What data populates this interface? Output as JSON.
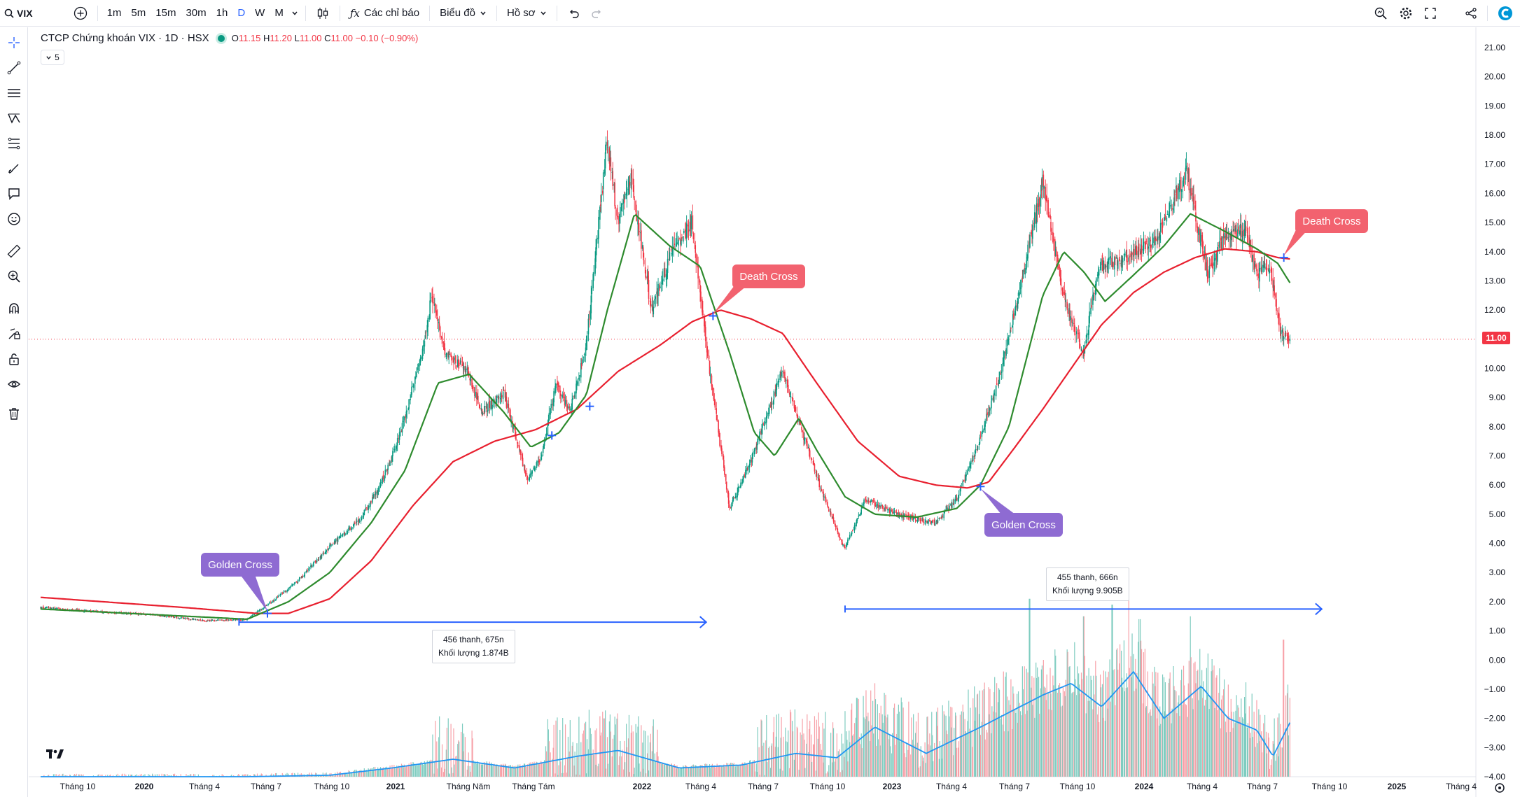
{
  "top_bar": {
    "symbol": "VIX",
    "timeframes": [
      {
        "label": "1m",
        "active": false
      },
      {
        "label": "5m",
        "active": false
      },
      {
        "label": "15m",
        "active": false
      },
      {
        "label": "30m",
        "active": false
      },
      {
        "label": "1h",
        "active": false
      },
      {
        "label": "D",
        "active": true
      },
      {
        "label": "W",
        "active": false
      },
      {
        "label": "M",
        "active": false
      }
    ],
    "indicators_label": "Các chỉ báo",
    "chart_type_label": "Biểu đồ",
    "profile_label": "Hồ sơ"
  },
  "legend": {
    "title": "CTCP Chứng khoán VIX · 1D · HSX",
    "open_label": "O",
    "open": "11.15",
    "high_label": "H",
    "high": "11.20",
    "low_label": "L",
    "low": "11.00",
    "close_label": "C",
    "close": "11.00",
    "change": "−0.10 (−0.90%)",
    "indicator_count": "5"
  },
  "price_tag": "11.00",
  "annotations": {
    "golden_cross_1": "Golden Cross",
    "golden_cross_2": "Golden Cross",
    "death_cross_1": "Death Cross",
    "death_cross_2": "Death Cross"
  },
  "measure_1": {
    "line1": "456 thanh, 675n",
    "line2": "Khối lượng 1.874B"
  },
  "measure_2": {
    "line1": "455 thanh, 666n",
    "line2": "Khối lượng 9.905B"
  },
  "colors": {
    "up": "#089981",
    "down": "#f23645",
    "ma_fast": "#2e8b2e",
    "ma_slow": "#e8202f",
    "volume_ma": "#2196f3",
    "annot_purple": "#8e6bd2",
    "annot_pink": "#f2626f",
    "measure": "#2962ff"
  },
  "icons": {
    "left_toolbar": [
      "crosshair-icon",
      "trend-line-icon",
      "horizontal-lines-icon",
      "pattern-icon",
      "fib-icon",
      "brush-icon",
      "comment-icon",
      "emoji-icon",
      "ruler-icon",
      "zoom-in-icon",
      "magnet-icon",
      "lock-drawing-icon",
      "unlock-icon",
      "eye-icon",
      "trash-icon"
    ],
    "top_right": [
      "search-zoom-icon",
      "gear-icon",
      "fullscreen-icon",
      "share-icon",
      "app-logo-icon"
    ]
  },
  "chart_data": {
    "type": "candlestick",
    "title": "CTCP Chứng khoán VIX · 1D · HSX",
    "y_axis": {
      "min": -4.0,
      "max": 21.0,
      "step": 1.0,
      "ticks": [
        "21.00",
        "20.00",
        "19.00",
        "18.00",
        "17.00",
        "16.00",
        "15.00",
        "14.00",
        "13.00",
        "12.00",
        "11.00",
        "10.00",
        "9.00",
        "8.00",
        "7.00",
        "6.00",
        "5.00",
        "4.00",
        "3.00",
        "2.00",
        "1.00",
        "0.00",
        "−1.00",
        "−2.00",
        "−3.00",
        "−4.00"
      ]
    },
    "x_axis": {
      "ticks": [
        {
          "label": "Tháng 10",
          "bold": false
        },
        {
          "label": "2020",
          "bold": true
        },
        {
          "label": "Tháng 4",
          "bold": false
        },
        {
          "label": "Tháng 7",
          "bold": false
        },
        {
          "label": "Tháng 10",
          "bold": false
        },
        {
          "label": "2021",
          "bold": true
        },
        {
          "label": "Tháng Năm",
          "bold": false
        },
        {
          "label": "Tháng Tám",
          "bold": false
        },
        {
          "label": "2022",
          "bold": true
        },
        {
          "label": "Tháng 4",
          "bold": false
        },
        {
          "label": "Tháng 7",
          "bold": false
        },
        {
          "label": "Tháng 10",
          "bold": false
        },
        {
          "label": "2023",
          "bold": true
        },
        {
          "label": "Tháng 4",
          "bold": false
        },
        {
          "label": "Tháng 7",
          "bold": false
        },
        {
          "label": "Tháng 10",
          "bold": false
        },
        {
          "label": "2024",
          "bold": true
        },
        {
          "label": "Tháng 4",
          "bold": false
        },
        {
          "label": "Tháng 7",
          "bold": false
        },
        {
          "label": "Tháng 10",
          "bold": false
        },
        {
          "label": "2025",
          "bold": true
        },
        {
          "label": "Tháng 4",
          "bold": false
        }
      ]
    },
    "price_keypoints": [
      [
        "2019-08-01",
        1.8
      ],
      [
        "2019-11-01",
        1.65
      ],
      [
        "2020-01-15",
        1.55
      ],
      [
        "2020-04-01",
        1.35
      ],
      [
        "2020-06-01",
        1.4
      ],
      [
        "2020-07-01",
        1.9
      ],
      [
        "2020-08-15",
        2.7
      ],
      [
        "2020-10-01",
        3.9
      ],
      [
        "2020-11-15",
        4.8
      ],
      [
        "2020-12-15",
        6.0
      ],
      [
        "2021-01-10",
        7.5
      ],
      [
        "2021-02-15",
        10.5
      ],
      [
        "2021-03-01",
        12.5
      ],
      [
        "2021-03-20",
        10.5
      ],
      [
        "2021-04-20",
        10.0
      ],
      [
        "2021-05-15",
        8.5
      ],
      [
        "2021-06-15",
        9.2
      ],
      [
        "2021-07-20",
        6.2
      ],
      [
        "2021-08-10",
        7.0
      ],
      [
        "2021-09-01",
        9.5
      ],
      [
        "2021-09-20",
        8.5
      ],
      [
        "2021-10-15",
        10.8
      ],
      [
        "2021-11-15",
        17.8
      ],
      [
        "2021-12-01",
        15.0
      ],
      [
        "2021-12-20",
        16.5
      ],
      [
        "2022-01-20",
        12.0
      ],
      [
        "2022-02-15",
        13.8
      ],
      [
        "2022-03-20",
        15.0
      ],
      [
        "2022-04-15",
        10.0
      ],
      [
        "2022-05-15",
        5.2
      ],
      [
        "2022-06-15",
        6.8
      ],
      [
        "2022-07-15",
        8.8
      ],
      [
        "2022-08-01",
        9.9
      ],
      [
        "2022-08-20",
        8.5
      ],
      [
        "2022-10-01",
        5.6
      ],
      [
        "2022-11-01",
        3.8
      ],
      [
        "2022-12-01",
        5.5
      ],
      [
        "2023-01-15",
        5.0
      ],
      [
        "2023-03-15",
        4.7
      ],
      [
        "2023-04-15",
        5.5
      ],
      [
        "2023-05-15",
        7.3
      ],
      [
        "2023-06-15",
        9.5
      ],
      [
        "2023-07-15",
        12.5
      ],
      [
        "2023-08-20",
        16.3
      ],
      [
        "2023-09-20",
        12.5
      ],
      [
        "2023-10-20",
        10.5
      ],
      [
        "2023-11-10",
        13.5
      ],
      [
        "2023-12-15",
        13.8
      ],
      [
        "2024-02-01",
        14.3
      ],
      [
        "2024-03-20",
        16.8
      ],
      [
        "2024-04-20",
        13.2
      ],
      [
        "2024-05-15",
        14.5
      ],
      [
        "2024-06-15",
        14.8
      ],
      [
        "2024-07-01",
        13.2
      ],
      [
        "2024-07-20",
        13.6
      ],
      [
        "2024-08-05",
        11.2
      ],
      [
        "2024-08-20",
        11.0
      ]
    ],
    "ma_fast_keypoints": [
      [
        "2019-08-01",
        1.75
      ],
      [
        "2020-06-01",
        1.4
      ],
      [
        "2020-08-01",
        2.0
      ],
      [
        "2020-10-01",
        3.0
      ],
      [
        "2020-12-01",
        4.7
      ],
      [
        "2021-01-20",
        6.5
      ],
      [
        "2021-03-10",
        9.5
      ],
      [
        "2021-04-25",
        9.8
      ],
      [
        "2021-06-15",
        8.5
      ],
      [
        "2021-07-25",
        7.3
      ],
      [
        "2021-09-05",
        7.8
      ],
      [
        "2021-10-15",
        9.1
      ],
      [
        "2021-11-15",
        12.0
      ],
      [
        "2021-12-25",
        15.3
      ],
      [
        "2022-02-15",
        14.2
      ],
      [
        "2022-04-01",
        13.5
      ],
      [
        "2022-05-15",
        10.5
      ],
      [
        "2022-06-20",
        7.8
      ],
      [
        "2022-07-20",
        7.0
      ],
      [
        "2022-08-25",
        8.3
      ],
      [
        "2022-09-20",
        7.2
      ],
      [
        "2022-11-01",
        5.6
      ],
      [
        "2022-12-15",
        5.0
      ],
      [
        "2023-02-15",
        4.9
      ],
      [
        "2023-04-15",
        5.2
      ],
      [
        "2023-05-20",
        6.0
      ],
      [
        "2023-07-01",
        8.0
      ],
      [
        "2023-08-20",
        12.5
      ],
      [
        "2023-09-20",
        14.0
      ],
      [
        "2023-10-20",
        13.3
      ],
      [
        "2023-11-20",
        12.3
      ],
      [
        "2024-01-01",
        13.2
      ],
      [
        "2024-02-15",
        14.2
      ],
      [
        "2024-03-25",
        15.3
      ],
      [
        "2024-05-15",
        14.7
      ],
      [
        "2024-07-01",
        14.1
      ],
      [
        "2024-08-01",
        13.6
      ],
      [
        "2024-08-20",
        12.9
      ]
    ],
    "ma_slow_keypoints": [
      [
        "2019-08-01",
        2.15
      ],
      [
        "2020-03-01",
        1.8
      ],
      [
        "2020-06-15",
        1.6
      ],
      [
        "2020-08-01",
        1.6
      ],
      [
        "2020-10-01",
        2.1
      ],
      [
        "2020-12-01",
        3.4
      ],
      [
        "2021-02-01",
        5.3
      ],
      [
        "2021-04-01",
        6.8
      ],
      [
        "2021-06-01",
        7.5
      ],
      [
        "2021-08-01",
        7.9
      ],
      [
        "2021-10-01",
        8.6
      ],
      [
        "2021-12-01",
        9.9
      ],
      [
        "2022-02-01",
        10.8
      ],
      [
        "2022-03-20",
        11.6
      ],
      [
        "2022-05-01",
        12.0
      ],
      [
        "2022-06-15",
        11.7
      ],
      [
        "2022-08-01",
        11.2
      ],
      [
        "2022-09-20",
        9.5
      ],
      [
        "2022-11-20",
        7.5
      ],
      [
        "2023-01-20",
        6.3
      ],
      [
        "2023-03-15",
        6.0
      ],
      [
        "2023-05-01",
        5.9
      ],
      [
        "2023-06-01",
        6.1
      ],
      [
        "2023-07-10",
        7.3
      ],
      [
        "2023-08-20",
        8.6
      ],
      [
        "2023-10-01",
        10.0
      ],
      [
        "2023-11-15",
        11.5
      ],
      [
        "2024-01-01",
        12.6
      ],
      [
        "2024-02-15",
        13.3
      ],
      [
        "2024-04-01",
        13.8
      ],
      [
        "2024-05-15",
        14.1
      ],
      [
        "2024-07-01",
        14.0
      ],
      [
        "2024-08-01",
        13.8
      ],
      [
        "2024-08-20",
        13.75
      ]
    ],
    "volume_ma_keypoints": [
      [
        "2019-08-01",
        -4.0
      ],
      [
        "2020-06-01",
        -4.0
      ],
      [
        "2020-10-01",
        -3.95
      ],
      [
        "2021-01-01",
        -3.7
      ],
      [
        "2021-04-01",
        -3.4
      ],
      [
        "2021-07-01",
        -3.7
      ],
      [
        "2021-10-01",
        -3.3
      ],
      [
        "2021-12-01",
        -3.1
      ],
      [
        "2022-03-01",
        -3.7
      ],
      [
        "2022-06-01",
        -3.6
      ],
      [
        "2022-08-20",
        -3.2
      ],
      [
        "2022-10-20",
        -3.35
      ],
      [
        "2022-12-15",
        -2.3
      ],
      [
        "2023-03-01",
        -3.2
      ],
      [
        "2023-05-20",
        -2.3
      ],
      [
        "2023-08-20",
        -1.2
      ],
      [
        "2023-10-01",
        -0.8
      ],
      [
        "2023-11-15",
        -1.6
      ],
      [
        "2024-01-01",
        -0.4
      ],
      [
        "2024-02-15",
        -2.0
      ],
      [
        "2024-04-10",
        -0.9
      ],
      [
        "2024-05-20",
        -2.0
      ],
      [
        "2024-07-01",
        -2.4
      ],
      [
        "2024-07-25",
        -3.3
      ],
      [
        "2024-08-20",
        -2.1
      ]
    ],
    "volume_spikes": [
      [
        "2021-11-10",
        -2.0
      ],
      [
        "2022-11-20",
        -1.3
      ],
      [
        "2023-05-25",
        -1.0
      ],
      [
        "2023-08-01",
        2.1
      ],
      [
        "2023-10-20",
        1.5
      ],
      [
        "2023-12-01",
        1.9
      ],
      [
        "2023-12-25",
        2.2
      ],
      [
        "2024-01-10",
        1.4
      ],
      [
        "2024-03-25",
        1.5
      ],
      [
        "2024-08-10",
        0.7
      ]
    ],
    "golden_cross_points": [
      [
        "2020-07-01",
        1.6
      ],
      [
        "2021-08-25",
        7.7
      ],
      [
        "2021-10-20",
        8.7
      ],
      [
        "2023-05-20",
        5.95
      ]
    ],
    "death_cross_points": [
      [
        "2022-04-20",
        11.8
      ],
      [
        "2024-08-10",
        13.8
      ]
    ],
    "measure_ranges": [
      {
        "from": [
          "2020-05-20",
          1.3
        ],
        "to": [
          "2022-04-10",
          1.3
        ]
      },
      {
        "from": [
          "2022-11-01",
          1.75
        ],
        "to": [
          "2024-10-05",
          1.75
        ]
      }
    ],
    "last_price": 11.0,
    "series": [
      {
        "name": "",
        "role": "price"
      },
      {
        "name": "",
        "role": "ma_fast"
      },
      {
        "name": "",
        "role": "ma_slow"
      },
      {
        "name": "",
        "role": "volume"
      },
      {
        "name": "",
        "role": "volume_ma"
      }
    ]
  }
}
